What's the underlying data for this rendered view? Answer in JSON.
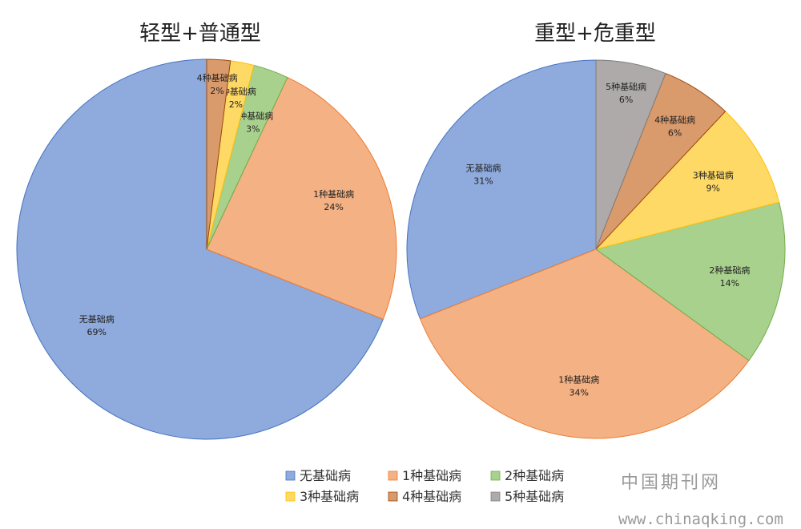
{
  "chart_data": [
    {
      "type": "pie",
      "title": "轻型+普通型",
      "categories": [
        "无基础病",
        "1种基础病",
        "2种基础病",
        "3种基础病",
        "4种基础病"
      ],
      "values": [
        69,
        24,
        3,
        2,
        2
      ],
      "value_labels": [
        "69%",
        "24%",
        "3%",
        "2%",
        "2%"
      ]
    },
    {
      "type": "pie",
      "title": "重型+危重型",
      "categories": [
        "无基础病",
        "1种基础病",
        "2种基础病",
        "3种基础病",
        "4种基础病",
        "5种基础病"
      ],
      "values": [
        31,
        34,
        14,
        9,
        6,
        6
      ],
      "value_labels": [
        "31%",
        "34%",
        "14%",
        "9%",
        "6%",
        "6%"
      ]
    }
  ],
  "legend": {
    "placement": "bottom",
    "items": [
      {
        "label": "无基础病",
        "color": "#8faadc"
      },
      {
        "label": "1种基础病",
        "color": "#f4b183"
      },
      {
        "label": "2种基础病",
        "color": "#a9d18e"
      },
      {
        "label": "3种基础病",
        "color": "#ffd966"
      },
      {
        "label": "4种基础病",
        "color": "#d99a6c"
      },
      {
        "label": "5种基础病",
        "color": "#aeaaaa"
      }
    ]
  },
  "colors": {
    "无基础病": "#8faadc",
    "1种基础病": "#f4b183",
    "2种基础病": "#a9d18e",
    "3种基础病": "#ffd966",
    "4种基础病": "#d99a6c",
    "5种基础病": "#aeaaaa"
  },
  "stroke_colors": {
    "无基础病": "#4472c4",
    "1种基础病": "#ed7d31",
    "2种基础病": "#70ad47",
    "3种基础病": "#ffc000",
    "4种基础病": "#9e480e",
    "5种基础病": "#7f7f7f"
  },
  "watermark": {
    "line1": "中国期刊网",
    "line2": "www.chinaqking.com"
  }
}
